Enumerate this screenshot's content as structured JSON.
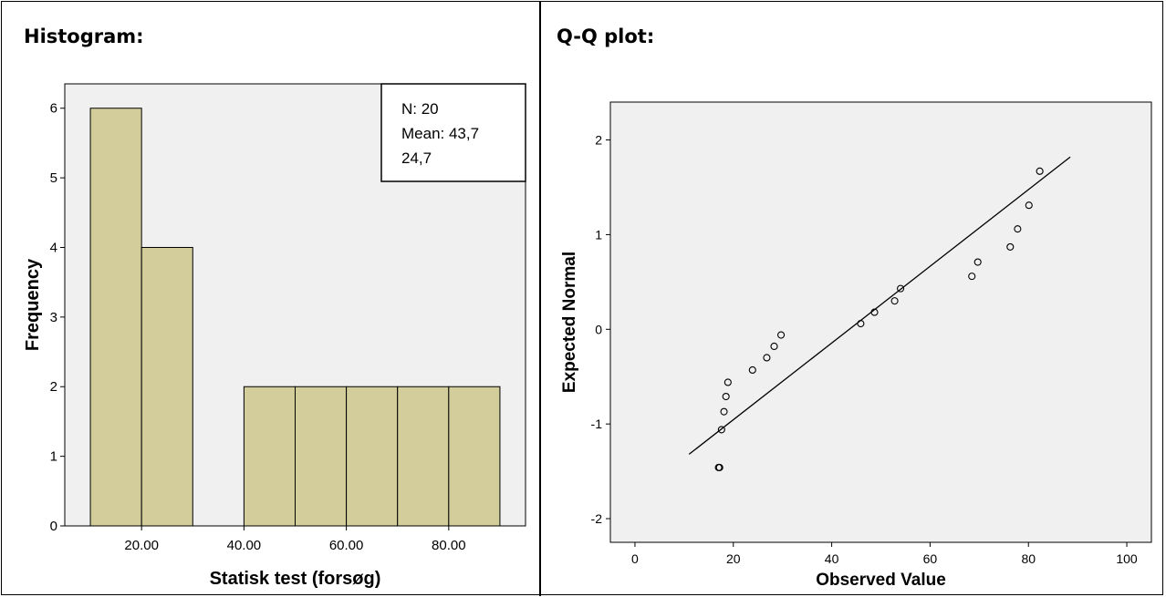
{
  "panels": {
    "left_title": "Histogram:",
    "right_title": "Q-Q plot:"
  },
  "colors": {
    "bar_fill": "#d3cd9c",
    "plot_bg": "#f0f0f0",
    "ink": "#000000"
  },
  "chart_data": [
    {
      "type": "bar",
      "subtype": "histogram",
      "bins": [
        [
          10,
          20
        ],
        [
          20,
          30
        ],
        [
          30,
          40
        ],
        [
          40,
          50
        ],
        [
          50,
          60
        ],
        [
          60,
          70
        ],
        [
          70,
          80
        ],
        [
          80,
          90
        ]
      ],
      "values": [
        6,
        4,
        0,
        2,
        2,
        2,
        2,
        2
      ],
      "xlabel": "Statisk test (forsøg)",
      "ylabel": "Frequency",
      "xlim": [
        5,
        95
      ],
      "ylim": [
        0,
        6.35
      ],
      "xticks": [
        20,
        40,
        60,
        80
      ],
      "xtick_labels": [
        "20.00",
        "40.00",
        "60.00",
        "80.00"
      ],
      "yticks": [
        0,
        1,
        2,
        3,
        4,
        5,
        6
      ],
      "ytick_labels": [
        "0",
        "1",
        "2",
        "3",
        "4",
        "5",
        "6"
      ],
      "grid": false,
      "legend": {
        "placement": "top-right",
        "lines": [
          "N: 20",
          "Mean: 43,7",
          "24,7"
        ]
      }
    },
    {
      "type": "scatter",
      "subtype": "normal-qq",
      "xlabel": "Observed Value",
      "ylabel": "Expected Normal",
      "xlim": [
        -5,
        105
      ],
      "ylim": [
        -2.25,
        2.4
      ],
      "xticks": [
        0,
        20,
        40,
        60,
        80,
        100
      ],
      "yticks": [
        -2,
        -1,
        0,
        1,
        2
      ],
      "grid": false,
      "points": [
        {
          "x": 17,
          "y": -1.46
        },
        {
          "x": 17.2,
          "y": -1.46
        },
        {
          "x": 17.6,
          "y": -1.06
        },
        {
          "x": 18.1,
          "y": -0.87
        },
        {
          "x": 18.5,
          "y": -0.71
        },
        {
          "x": 18.9,
          "y": -0.56
        },
        {
          "x": 23.9,
          "y": -0.43
        },
        {
          "x": 26.8,
          "y": -0.3
        },
        {
          "x": 28.3,
          "y": -0.18
        },
        {
          "x": 29.7,
          "y": -0.06
        },
        {
          "x": 45.9,
          "y": 0.06
        },
        {
          "x": 48.7,
          "y": 0.18
        },
        {
          "x": 52.8,
          "y": 0.3
        },
        {
          "x": 54.0,
          "y": 0.43
        },
        {
          "x": 68.5,
          "y": 0.56
        },
        {
          "x": 69.7,
          "y": 0.71
        },
        {
          "x": 76.3,
          "y": 0.87
        },
        {
          "x": 77.8,
          "y": 1.06
        },
        {
          "x": 80.1,
          "y": 1.31
        },
        {
          "x": 82.3,
          "y": 1.67
        }
      ],
      "reference_line": {
        "x1": 11,
        "y1": -1.32,
        "x2": 88.5,
        "y2": 1.82
      }
    }
  ]
}
